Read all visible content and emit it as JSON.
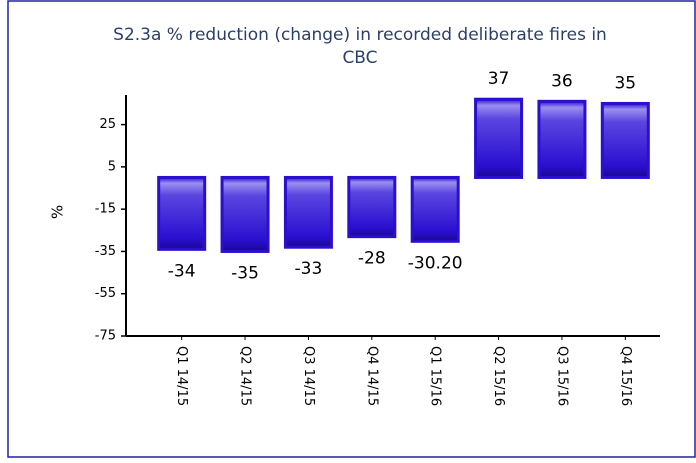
{
  "chart_data": {
    "type": "bar",
    "title": "S2.3a % reduction (change) in recorded deliberate fires in",
    "subtitle": "CBC",
    "y_label": "%",
    "categories": [
      "Q1 14/15",
      "Q2 14/15",
      "Q3 14/15",
      "Q4 14/15",
      "Q1 15/16",
      "Q2 15/16",
      "Q3 15/16",
      "Q4 15/16"
    ],
    "values": [
      -34,
      -35,
      -33,
      -28,
      -30.2,
      37,
      36,
      35
    ],
    "value_labels": [
      "-34",
      "-35",
      "-33",
      "-28",
      "-30.20",
      "37",
      "36",
      "35"
    ],
    "color": "#2a0fd0",
    "ylim": [
      -75,
      39
    ],
    "yticks": [
      25,
      5,
      -15,
      -35,
      -55,
      -75
    ],
    "grid": false
  }
}
